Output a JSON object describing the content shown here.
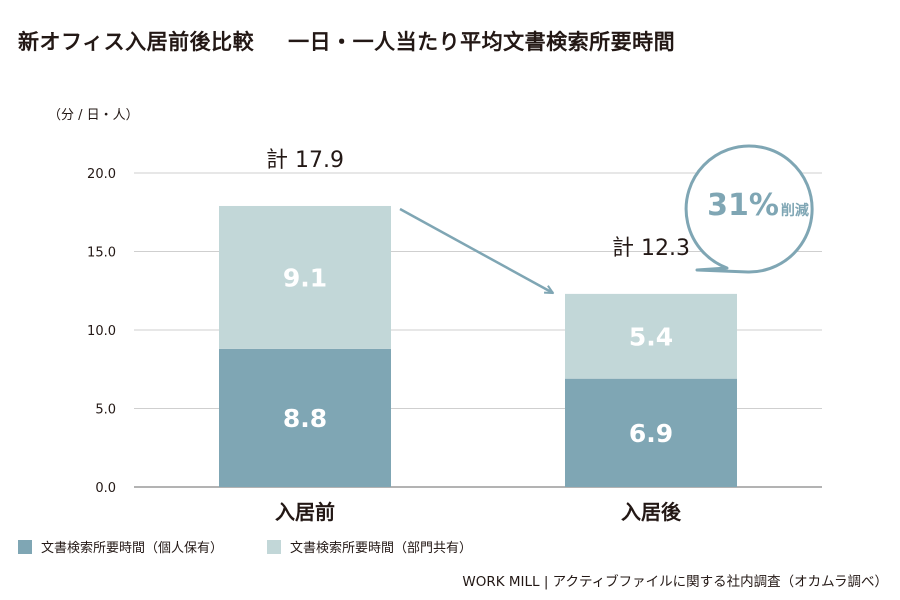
{
  "title": {
    "main": "新オフィス入居前後比較",
    "sub": "一日・一人当たり平均文書検索所要時間"
  },
  "unit_label": "（分 / 日・人）",
  "callout": {
    "value": "31%",
    "suffix": "削減"
  },
  "source": "WORK MILL | アクティブファイルに関する社内調査（オカムラ調べ）",
  "colors": {
    "personal": "#7fa6b4",
    "shared": "#c2d7d8",
    "axis": "#9a9a9a",
    "grid": "#cfcfcf",
    "callout": "#7fa6b4",
    "arrow": "#7fa6b4"
  },
  "chart_data": {
    "type": "bar",
    "stacked": true,
    "categories": [
      "入居前",
      "入居後"
    ],
    "series": [
      {
        "name": "文書検索所要時間（個人保有）",
        "values": [
          8.8,
          6.9
        ]
      },
      {
        "name": "文書検索所要時間（部門共有）",
        "values": [
          9.1,
          5.4
        ]
      }
    ],
    "totals": [
      "計 17.9",
      "計 12.3"
    ],
    "segment_labels": [
      [
        "8.8",
        "6.9"
      ],
      [
        "9.1",
        "5.4"
      ]
    ],
    "yticks": [
      "0.0",
      "5.0",
      "10.0",
      "15.0",
      "20.0"
    ],
    "ylim": [
      0,
      20
    ],
    "grid": true,
    "legend": "bottom-left"
  }
}
